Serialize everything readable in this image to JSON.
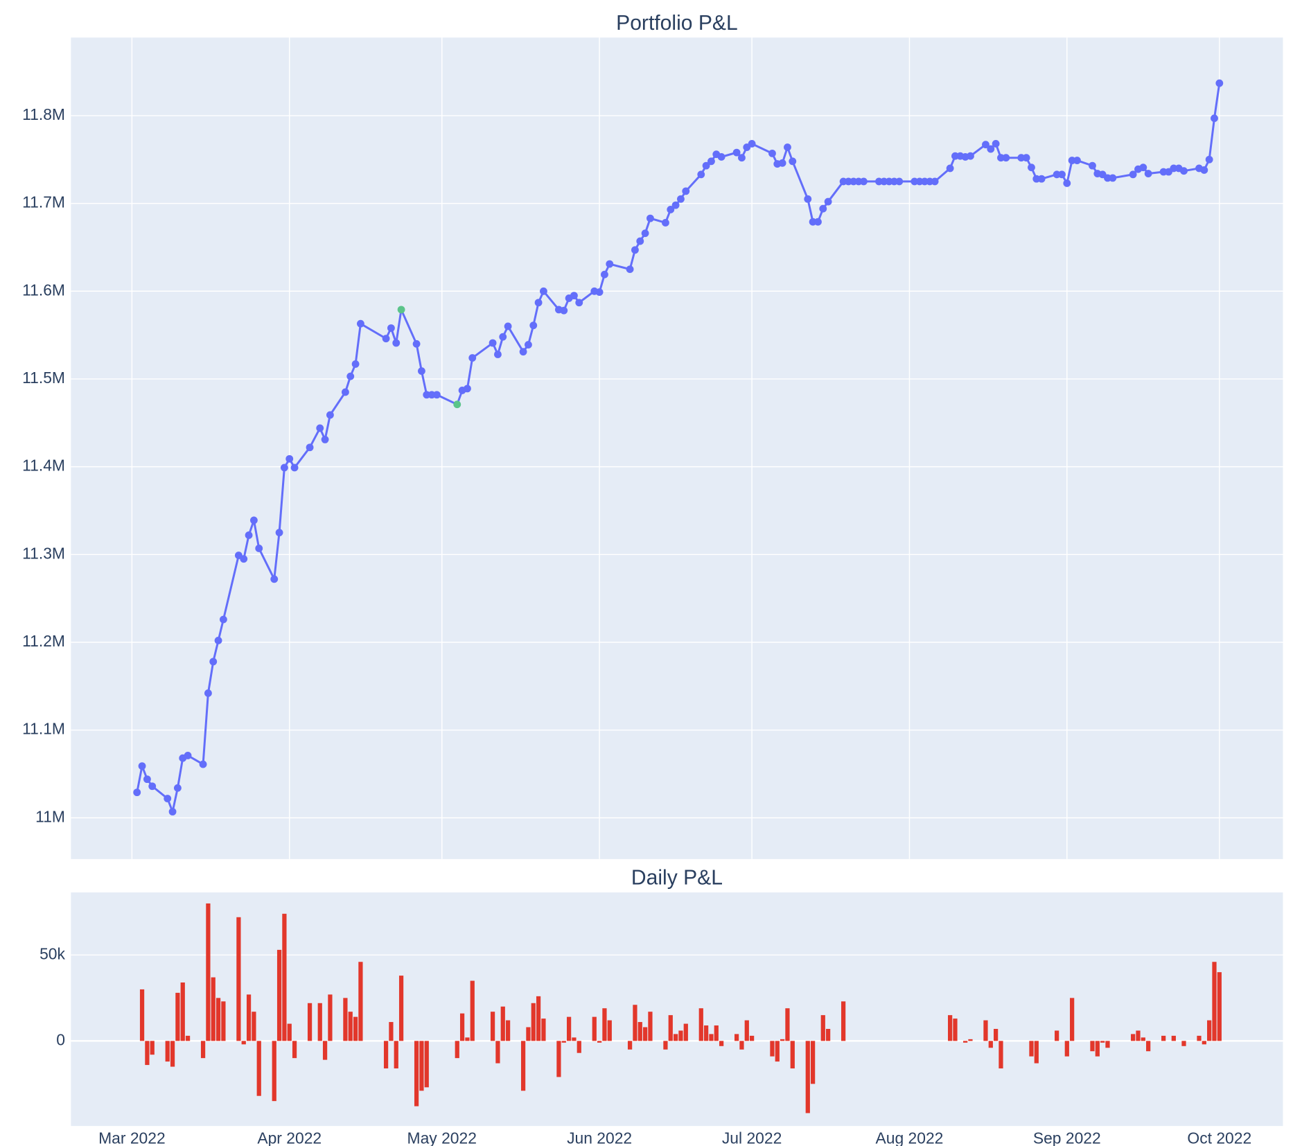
{
  "chart_data": [
    {
      "type": "line",
      "title": "Portfolio P&L",
      "color": "#636efa",
      "highlight_color": "#5bc48a",
      "highlight_indices": [
        35,
        41
      ],
      "xlim": [
        48,
        286.5
      ],
      "xticks": [
        60,
        91,
        121,
        152,
        182,
        213,
        244,
        274
      ],
      "xgrid": true,
      "ylim": [
        10953000,
        11889000
      ],
      "yticks": [
        {
          "value": 11000000,
          "label": "11M"
        },
        {
          "value": 11100000,
          "label": "11.1M"
        },
        {
          "value": 11200000,
          "label": "11.2M"
        },
        {
          "value": 11300000,
          "label": "11.3M"
        },
        {
          "value": 11400000,
          "label": "11.4M"
        },
        {
          "value": 11500000,
          "label": "11.5M"
        },
        {
          "value": 11600000,
          "label": "11.6M"
        },
        {
          "value": 11700000,
          "label": "11.7M"
        },
        {
          "value": 11800000,
          "label": "11.8M"
        }
      ],
      "x": [
        61,
        62,
        63,
        64,
        67,
        68,
        69,
        70,
        71,
        74,
        75,
        76,
        77,
        78,
        81,
        82,
        83,
        84,
        85,
        88,
        89,
        90,
        91,
        92,
        95,
        97,
        98,
        99,
        102,
        103,
        104,
        105,
        110,
        111,
        112,
        113,
        116,
        117,
        118,
        119,
        120,
        124,
        125,
        126,
        127,
        131,
        132,
        133,
        134,
        137,
        138,
        139,
        140,
        141,
        144,
        145,
        146,
        147,
        148,
        151,
        152,
        153,
        154,
        158,
        159,
        160,
        161,
        162,
        165,
        166,
        167,
        168,
        169,
        172,
        173,
        174,
        175,
        176,
        179,
        180,
        181,
        182,
        186,
        187,
        188,
        189,
        190,
        193,
        194,
        195,
        196,
        197,
        200,
        201,
        202,
        203,
        204,
        207,
        208,
        209,
        210,
        211,
        214,
        215,
        216,
        217,
        218,
        221,
        222,
        223,
        224,
        225,
        228,
        229,
        230,
        231,
        232,
        235,
        236,
        237,
        238,
        239,
        242,
        243,
        244,
        245,
        246,
        249,
        250,
        251,
        252,
        253,
        257,
        258,
        259,
        260,
        263,
        264,
        265,
        266,
        267,
        270,
        271,
        272,
        273,
        274
      ],
      "values": [
        11029000,
        11059000,
        11044000,
        11036000,
        11022000,
        11007000,
        11034000,
        11068000,
        11071000,
        11061000,
        11142000,
        11178000,
        11202000,
        11226000,
        11299000,
        11295000,
        11322000,
        11339000,
        11307000,
        11272000,
        11325000,
        11399000,
        11409000,
        11399000,
        11422000,
        11444000,
        11431000,
        11459000,
        11485000,
        11503000,
        11517000,
        11563000,
        11546000,
        11558000,
        11541000,
        11579000,
        11540000,
        11509000,
        11482000,
        11482000,
        11482000,
        11471000,
        11487000,
        11489000,
        11524000,
        11541000,
        11528000,
        11548000,
        11560000,
        11531000,
        11539000,
        11561000,
        11587000,
        11600000,
        11579000,
        11578000,
        11592000,
        11595000,
        11587000,
        11600000,
        11599000,
        11619000,
        11631000,
        11625000,
        11647000,
        11657000,
        11666000,
        11683000,
        11678000,
        11693000,
        11698000,
        11705000,
        11714000,
        11733000,
        11743000,
        11748000,
        11756000,
        11753000,
        11758000,
        11752000,
        11764000,
        11768000,
        11757000,
        11745000,
        11746000,
        11764000,
        11748000,
        11705000,
        11679000,
        11679000,
        11694000,
        11702000,
        11725000,
        11725000,
        11725000,
        11725000,
        11725000,
        11725000,
        11725000,
        11725000,
        11725000,
        11725000,
        11725000,
        11725000,
        11725000,
        11725000,
        11725000,
        11740000,
        11754000,
        11754000,
        11753000,
        11754000,
        11767000,
        11762000,
        11768000,
        11752000,
        11752000,
        11752000,
        11752000,
        11741000,
        11728000,
        11728000,
        11733000,
        11733000,
        11723000,
        11749000,
        11749000,
        11743000,
        11734000,
        11733000,
        11729000,
        11729000,
        11733000,
        11739000,
        11741000,
        11734000,
        11736000,
        11736000,
        11740000,
        11740000,
        11737000,
        11740000,
        11738000,
        11750000,
        11797000,
        11837000
      ]
    },
    {
      "type": "bar",
      "title": "Daily P&L",
      "color": "#e2372b",
      "xlim": [
        48,
        286.5
      ],
      "xgrid": false,
      "xticks": [
        {
          "value": 60,
          "label": "Mar 2022"
        },
        {
          "value": 91,
          "label": "Apr 2022"
        },
        {
          "value": 121,
          "label": "May 2022"
        },
        {
          "value": 152,
          "label": "Jun 2022"
        },
        {
          "value": 182,
          "label": "Jul 2022"
        },
        {
          "value": 213,
          "label": "Aug 2022"
        },
        {
          "value": 244,
          "label": "Sep 2022"
        },
        {
          "value": 274,
          "label": "Oct 2022"
        }
      ],
      "ylim": [
        -49500,
        86400
      ],
      "yticks": [
        0,
        {
          "value": 50000,
          "label": "50k"
        }
      ],
      "x": [
        62,
        63,
        64,
        67,
        68,
        69,
        70,
        71,
        74,
        75,
        76,
        77,
        78,
        81,
        82,
        83,
        84,
        85,
        88,
        89,
        90,
        91,
        92,
        95,
        97,
        98,
        99,
        102,
        103,
        104,
        105,
        110,
        111,
        112,
        113,
        116,
        117,
        118,
        119,
        120,
        124,
        125,
        126,
        127,
        131,
        132,
        133,
        134,
        137,
        138,
        139,
        140,
        141,
        144,
        145,
        146,
        147,
        148,
        151,
        152,
        153,
        154,
        158,
        159,
        160,
        161,
        162,
        165,
        166,
        167,
        168,
        169,
        172,
        173,
        174,
        175,
        176,
        179,
        180,
        181,
        182,
        186,
        187,
        188,
        189,
        190,
        193,
        194,
        195,
        196,
        197,
        200,
        201,
        202,
        203,
        204,
        207,
        208,
        209,
        210,
        211,
        214,
        215,
        216,
        217,
        218,
        221,
        222,
        223,
        224,
        225,
        228,
        229,
        230,
        231,
        232,
        235,
        236,
        237,
        238,
        239,
        242,
        243,
        244,
        245,
        246,
        249,
        250,
        251,
        252,
        253,
        257,
        258,
        259,
        260,
        263,
        264,
        265,
        266,
        267,
        270,
        271,
        272,
        273,
        274
      ],
      "values": [
        30000,
        -14000,
        -8000,
        -12000,
        -15000,
        28000,
        34000,
        3000,
        -10000,
        80000,
        37000,
        25000,
        23000,
        72000,
        -2000,
        27000,
        17000,
        -32000,
        -35000,
        53000,
        74000,
        10000,
        -10000,
        22000,
        22000,
        -11000,
        27000,
        25000,
        17000,
        14000,
        46000,
        -16000,
        11000,
        -16000,
        38000,
        -38000,
        -29000,
        -27000,
        0,
        0,
        -10000,
        16000,
        2000,
        35000,
        17000,
        -13000,
        20000,
        12000,
        -29000,
        8000,
        22000,
        26000,
        13000,
        -21000,
        -1000,
        14000,
        2000,
        -7000,
        14000,
        -1000,
        19000,
        12000,
        -5000,
        21000,
        11000,
        8000,
        17000,
        -5000,
        15000,
        4000,
        6000,
        10000,
        19000,
        9000,
        4000,
        9000,
        -3000,
        4000,
        -5000,
        12000,
        3000,
        -9000,
        -12000,
        1000,
        19000,
        -16000,
        -42000,
        -25000,
        0,
        15000,
        7000,
        23000,
        0,
        0,
        0,
        0,
        0,
        0,
        0,
        0,
        0,
        0,
        0,
        0,
        0,
        0,
        15000,
        13000,
        0,
        -1000,
        1000,
        12000,
        -4000,
        7000,
        -16000,
        0,
        0,
        0,
        -9000,
        -13000,
        0,
        6000,
        0,
        -9000,
        25000,
        0,
        -6000,
        -9000,
        -1000,
        -4000,
        0,
        4000,
        6000,
        2000,
        -6000,
        3000,
        0,
        3000,
        0,
        -3000,
        3000,
        -2000,
        12000,
        46000,
        40000
      ]
    }
  ]
}
